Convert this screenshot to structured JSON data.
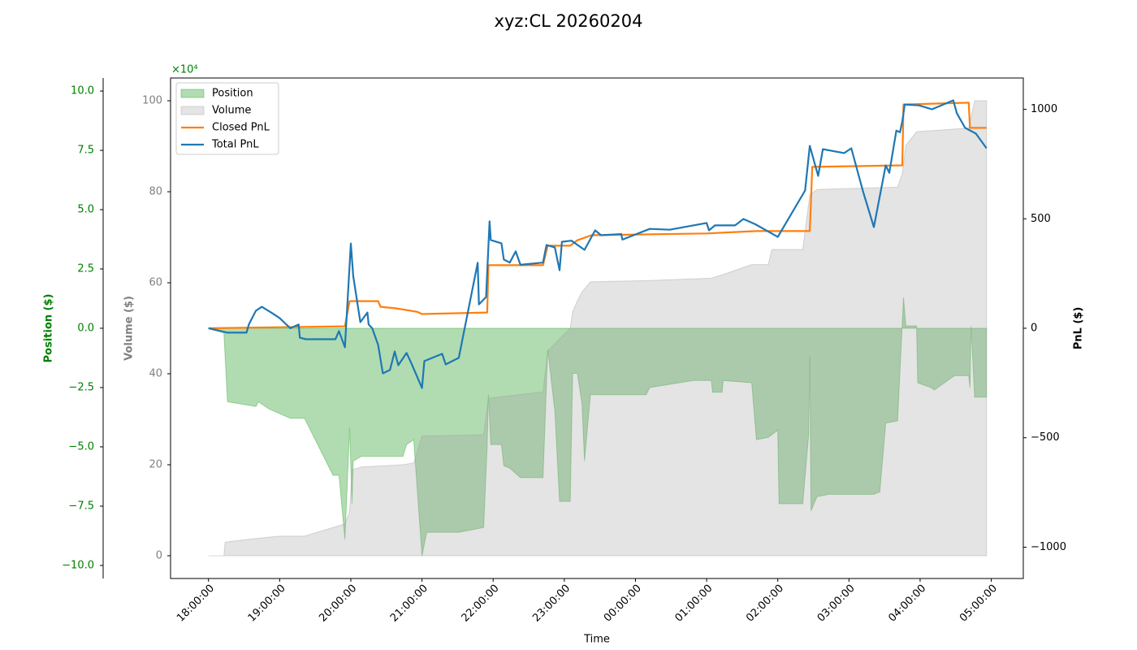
{
  "chart_data": {
    "type": "line",
    "title": "xyz:CL 20260204",
    "xlabel": "Time",
    "ylabel": "Position ($)",
    "y_offset_label": "×10⁴",
    "y2label": "PnL ($)",
    "y3label": "Volume ($)",
    "xlim": [
      "17:28:00",
      "05:27:00"
    ],
    "xticks": [
      "18:00:00",
      "19:00:00",
      "20:00:00",
      "21:00:00",
      "22:00:00",
      "23:00:00",
      "00:00:00",
      "01:00:00",
      "02:00:00",
      "03:00:00",
      "04:00:00",
      "05:00:00"
    ],
    "ylim": [
      -10.55,
      10.55
    ],
    "yticks": [
      {
        "value": -10,
        "label": "−10.0"
      },
      {
        "value": -7.5,
        "label": "−7.5"
      },
      {
        "value": -5,
        "label": "−5.0"
      },
      {
        "value": -2.5,
        "label": "−2.5"
      },
      {
        "value": 0,
        "label": "0.0"
      },
      2.5,
      {
        "value": 5,
        "label": "5.0"
      },
      7.5,
      {
        "value": 10,
        "label": "10.0"
      }
    ],
    "y2lim": [
      -1143,
      1143
    ],
    "y2ticks": [
      {
        "value": -1000,
        "label": "−1000"
      },
      {
        "value": -500,
        "label": "−500"
      },
      0,
      500,
      1000
    ],
    "y3lim": [
      -5,
      105
    ],
    "y3ticks": [
      0,
      20,
      40,
      60,
      80,
      100
    ],
    "legend": "upper left",
    "series": [
      {
        "name": "Position",
        "type": "area",
        "axis": "y",
        "color": "#2ca02c",
        "x": [
          "18:00:00",
          "18:13:00",
          "18:16:00",
          "18:40:00",
          "18:42:00",
          "18:51:00",
          "19:00:00",
          "19:09:00",
          "19:21:00",
          "19:45:00",
          "19:50:00",
          "19:55:00",
          "19:59:00",
          "20:01:00",
          "20:02:00",
          "20:09:00",
          "20:44:00",
          "20:47:00",
          "20:53:00",
          "21:00:00",
          "21:04:00",
          "21:31:00",
          "21:52:00",
          "21:55:00",
          "21:56:00",
          "21:58:00",
          "22:07:00",
          "22:09:00",
          "22:14:00",
          "22:23:00",
          "22:42:00",
          "22:46:00",
          "22:52:00",
          "22:56:00",
          "23:05:00",
          "23:07:00",
          "23:11:00",
          "23:15:00",
          "23:17:00",
          "23:22:00",
          "00:09:00",
          "00:12:00",
          "00:49:00",
          "01:04:00",
          "01:05:00",
          "01:13:00",
          "01:14:00",
          "01:38:00",
          "01:42:00",
          "01:52:00",
          "02:00:00",
          "02:01:00",
          "02:21:00",
          "02:26:00",
          "02:27:00",
          "02:28:00",
          "02:33:00",
          "02:43:00",
          "03:21:00",
          "03:26:00",
          "03:31:00",
          "03:41:00",
          "03:46:00",
          "03:48:00",
          "03:57:00",
          "03:58:00",
          "04:09:00",
          "04:12:00",
          "04:29:00",
          "04:41:00",
          "04:42:00",
          "04:43:00",
          "04:46:00",
          "04:56:00"
        ],
        "values": [
          0,
          -0.2,
          -3.1,
          -3.3,
          -3.1,
          -3.4,
          -3.6,
          -3.8,
          -3.8,
          -6.2,
          -6.2,
          -8.9,
          -4.2,
          -7.4,
          -5.6,
          -5.4,
          -5.4,
          -4.9,
          -4.7,
          -9.6,
          -8.6,
          -8.6,
          -8.4,
          -4.9,
          -2.8,
          -4.9,
          -4.9,
          -5.8,
          -5.9,
          -6.3,
          -6.3,
          -0.9,
          -3.5,
          -7.3,
          -7.3,
          -1.9,
          -1.9,
          -3.2,
          -5.6,
          -2.8,
          -2.8,
          -2.5,
          -2.2,
          -2.2,
          -2.7,
          -2.7,
          -2.2,
          -2.3,
          -4.7,
          -4.6,
          -4.3,
          -7.4,
          -7.4,
          -4.5,
          -1.2,
          -7.7,
          -7.1,
          -7.0,
          -7.0,
          -6.9,
          -4.0,
          -3.9,
          1.3,
          0.1,
          0.1,
          -2.3,
          -2.5,
          -2.6,
          -2.0,
          -2.0,
          -2.5,
          0.1,
          -2.9,
          -2.9
        ]
      },
      {
        "name": "Volume",
        "type": "area",
        "axis": "y3",
        "color": "#9e9e9e",
        "x": [
          "18:00:00",
          "18:13:00",
          "18:14:00",
          "18:40:00",
          "19:00:00",
          "19:21:00",
          "19:55:00",
          "19:59:00",
          "20:01:00",
          "20:09:00",
          "20:44:00",
          "20:53:00",
          "21:00:00",
          "21:52:00",
          "21:56:00",
          "22:42:00",
          "22:46:00",
          "23:05:00",
          "23:07:00",
          "23:11:00",
          "23:15:00",
          "23:22:00",
          "00:12:00",
          "01:04:00",
          "01:14:00",
          "01:38:00",
          "01:52:00",
          "01:55:00",
          "02:21:00",
          "02:27:00",
          "02:33:00",
          "03:41:00",
          "03:45:00",
          "03:48:00",
          "03:57:00",
          "04:41:00",
          "04:46:00",
          "04:56:00"
        ],
        "values": [
          0,
          0,
          3.0,
          3.8,
          4.3,
          4.3,
          7.0,
          9.6,
          18.9,
          19.5,
          20.0,
          20.4,
          26.3,
          26.6,
          34.6,
          36.0,
          45,
          50,
          53.6,
          56,
          58,
          60.2,
          60.5,
          61,
          61.8,
          64,
          64,
          67.3,
          67.3,
          79.3,
          80.5,
          81,
          84,
          90.2,
          93.2,
          94,
          100,
          100
        ]
      },
      {
        "name": "Closed PnL",
        "type": "line",
        "axis": "y2",
        "color": "#ff7f0e",
        "x": [
          "18:00:00",
          "19:55:00",
          "19:59:00",
          "20:23:00",
          "20:25:00",
          "20:38:00",
          "20:56:00",
          "21:00:00",
          "21:55:00",
          "21:56:00",
          "22:42:00",
          "22:46:00",
          "23:05:00",
          "23:11:00",
          "23:23:00",
          "01:00:00",
          "01:42:00",
          "02:27:00",
          "02:28:00",
          "02:29:00",
          "03:45:00",
          "03:46:00",
          "04:41:00",
          "04:42:00",
          "04:56:00"
        ],
        "values": [
          0,
          9,
          124,
          124,
          98,
          91,
          75,
          65,
          72,
          288,
          288,
          377,
          377,
          402,
          425,
          433,
          444,
          444,
          581,
          737,
          744,
          1022,
          1030,
          915,
          915
        ]
      },
      {
        "name": "Total PnL",
        "type": "line",
        "axis": "y2",
        "color": "#1f77b4",
        "x": [
          "18:00:00",
          "18:16:00",
          "18:32:00",
          "18:34:00",
          "18:40:00",
          "18:45:00",
          "18:54:00",
          "19:00:00",
          "19:09:00",
          "19:16:00",
          "19:17:00",
          "19:22:00",
          "19:47:00",
          "19:50:00",
          "19:55:00",
          "20:00:00",
          "20:02:00",
          "20:08:00",
          "20:14:00",
          "20:15:00",
          "20:18:00",
          "20:23:00",
          "20:27:00",
          "20:33:00",
          "20:37:00",
          "20:40:00",
          "20:47:00",
          "20:51:00",
          "21:00:00",
          "21:02:00",
          "21:17:00",
          "21:20:00",
          "21:31:00",
          "21:47:00",
          "21:48:00",
          "21:54:00",
          "21:57:00",
          "21:58:00",
          "22:07:00",
          "22:09:00",
          "22:14:00",
          "22:19:00",
          "22:23:00",
          "22:42:00",
          "22:45:00",
          "22:52:00",
          "22:56:00",
          "22:58:00",
          "23:06:00",
          "23:17:00",
          "23:26:00",
          "23:31:00",
          "23:48:00",
          "23:49:00",
          "00:12:00",
          "00:29:00",
          "01:00:00",
          "01:02:00",
          "01:07:00",
          "01:24:00",
          "01:31:00",
          "01:41:00",
          "02:00:00",
          "02:23:00",
          "02:27:00",
          "02:34:00",
          "02:38:00",
          "02:56:00",
          "03:02:00",
          "03:12:00",
          "03:21:00",
          "03:31:00",
          "03:34:00",
          "03:40:00",
          "03:43:00",
          "03:45:00",
          "03:47:00",
          "03:59:00",
          "04:10:00",
          "04:28:00",
          "04:31:00",
          "04:38:00",
          "04:47:00",
          "04:56:00"
        ],
        "values": [
          0,
          -20,
          -20,
          17,
          80,
          98,
          68,
          46,
          0,
          17,
          -43,
          -50,
          -50,
          -13,
          -87,
          387,
          239,
          28,
          72,
          17,
          0,
          -76,
          -206,
          -190,
          -106,
          -169,
          -113,
          -160,
          -273,
          -150,
          -117,
          -165,
          -135,
          299,
          109,
          143,
          488,
          403,
          388,
          314,
          300,
          351,
          290,
          300,
          380,
          369,
          265,
          395,
          400,
          358,
          447,
          425,
          430,
          405,
          454,
          450,
          481,
          447,
          470,
          470,
          499,
          475,
          417,
          629,
          833,
          696,
          818,
          800,
          822,
          622,
          462,
          744,
          710,
          903,
          895,
          944,
          1022,
          1018,
          1000,
          1041,
          982,
          915,
          889,
          822
        ]
      }
    ]
  }
}
